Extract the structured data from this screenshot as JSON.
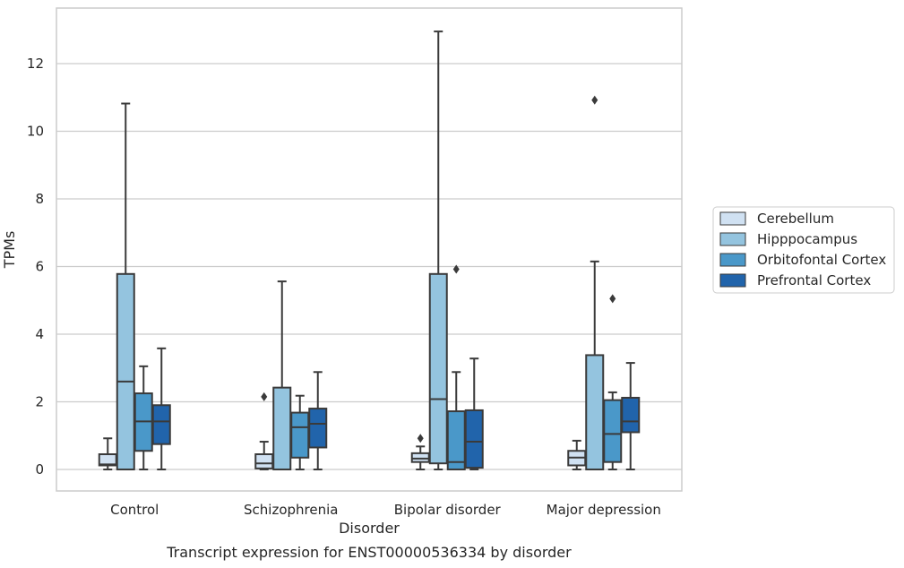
{
  "chart_data": {
    "type": "box",
    "title": "",
    "caption": "Transcript expression for ENST00000536334 by disorder",
    "xlabel": "Disorder",
    "ylabel": "TPMs",
    "ylim": [
      -0.62,
      13.6
    ],
    "yticks": [
      0,
      2,
      4,
      6,
      8,
      10,
      12
    ],
    "grid": "horizontal",
    "legend_position": "right",
    "categories": [
      "Control",
      "Schizophrenia",
      "Bipolar disorder",
      "Major depression"
    ],
    "series": [
      {
        "name": "Cerebellum",
        "color": "#d0e1f2",
        "boxes": [
          {
            "whislo": 0.0,
            "q1": 0.12,
            "med": 0.15,
            "q3": 0.45,
            "whishi": 0.92,
            "fliers": []
          },
          {
            "whislo": 0.0,
            "q1": 0.03,
            "med": 0.18,
            "q3": 0.45,
            "whishi": 0.82,
            "fliers": [
              2.15
            ]
          },
          {
            "whislo": 0.0,
            "q1": 0.22,
            "med": 0.32,
            "q3": 0.48,
            "whishi": 0.68,
            "fliers": [
              0.92
            ]
          },
          {
            "whislo": 0.0,
            "q1": 0.12,
            "med": 0.35,
            "q3": 0.55,
            "whishi": 0.85,
            "fliers": []
          }
        ]
      },
      {
        "name": "Hipppocampus",
        "color": "#94c4df",
        "boxes": [
          {
            "whislo": 0.0,
            "q1": 0.0,
            "med": 2.6,
            "q3": 5.78,
            "whishi": 10.82,
            "fliers": []
          },
          {
            "whislo": 0.0,
            "q1": 0.0,
            "med": 0.0,
            "q3": 2.42,
            "whishi": 5.56,
            "fliers": []
          },
          {
            "whislo": 0.0,
            "q1": 0.18,
            "med": 2.08,
            "q3": 5.78,
            "whishi": 12.95,
            "fliers": []
          },
          {
            "whislo": 0.0,
            "q1": 0.0,
            "med": 0.0,
            "q3": 3.38,
            "whishi": 6.15,
            "fliers": [
              10.92
            ]
          }
        ]
      },
      {
        "name": "Orbitofontal Cortex",
        "color": "#4a98c9",
        "boxes": [
          {
            "whislo": 0.0,
            "q1": 0.55,
            "med": 1.42,
            "q3": 2.25,
            "whishi": 3.05,
            "fliers": []
          },
          {
            "whislo": 0.0,
            "q1": 0.35,
            "med": 1.25,
            "q3": 1.68,
            "whishi": 2.18,
            "fliers": []
          },
          {
            "whislo": 0.0,
            "q1": 0.0,
            "med": 0.22,
            "q3": 1.72,
            "whishi": 2.88,
            "fliers": [
              5.92
            ]
          },
          {
            "whislo": 0.0,
            "q1": 0.22,
            "med": 1.05,
            "q3": 2.05,
            "whishi": 2.28,
            "fliers": [
              5.05
            ]
          }
        ]
      },
      {
        "name": "Prefrontal Cortex",
        "color": "#2164ab",
        "boxes": [
          {
            "whislo": 0.0,
            "q1": 0.75,
            "med": 1.42,
            "q3": 1.9,
            "whishi": 3.58,
            "fliers": []
          },
          {
            "whislo": 0.0,
            "q1": 0.65,
            "med": 1.35,
            "q3": 1.8,
            "whishi": 2.88,
            "fliers": []
          },
          {
            "whislo": 0.0,
            "q1": 0.05,
            "med": 0.82,
            "q3": 1.75,
            "whishi": 3.28,
            "fliers": []
          },
          {
            "whislo": 0.0,
            "q1": 1.1,
            "med": 1.42,
            "q3": 2.12,
            "whishi": 3.15,
            "fliers": []
          }
        ]
      }
    ]
  }
}
